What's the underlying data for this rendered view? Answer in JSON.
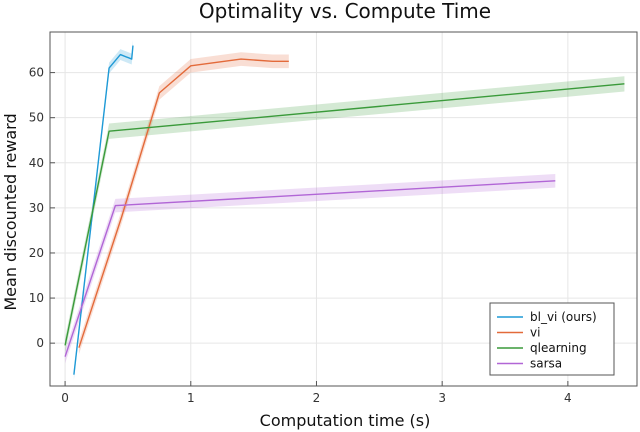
{
  "chart_data": {
    "type": "line",
    "title": "Optimality vs. Compute Time",
    "xlabel": "Computation time (s)",
    "ylabel": "Mean discounted reward",
    "xlim": [
      -0.12,
      4.55
    ],
    "ylim": [
      -9.5,
      69
    ],
    "xticks": [
      0,
      1,
      2,
      3,
      4
    ],
    "yticks": [
      0,
      10,
      20,
      30,
      40,
      50,
      60
    ],
    "grid": true,
    "legend_position": "bottom-right",
    "series": [
      {
        "name": "bl_vi (ours)",
        "color": "#1f9ad6",
        "points": [
          [
            0.07,
            -7
          ],
          [
            0.35,
            61
          ],
          [
            0.44,
            64
          ],
          [
            0.53,
            63
          ],
          [
            0.54,
            66
          ]
        ],
        "band": 1.2
      },
      {
        "name": "vi",
        "color": "#e36a3a",
        "points": [
          [
            0.11,
            -1
          ],
          [
            0.45,
            28
          ],
          [
            0.75,
            55.5
          ],
          [
            1.0,
            61.5
          ],
          [
            1.4,
            63
          ],
          [
            1.65,
            62.5
          ],
          [
            1.78,
            62.5
          ]
        ],
        "band": 1.5
      },
      {
        "name": "qlearning",
        "color": "#3a9a3a",
        "points": [
          [
            0.0,
            -0.5
          ],
          [
            0.35,
            47
          ],
          [
            4.45,
            57.5
          ]
        ],
        "band": 1.7
      },
      {
        "name": "sarsa",
        "color": "#b166d6",
        "points": [
          [
            0.0,
            -3
          ],
          [
            0.4,
            30.5
          ],
          [
            3.9,
            36
          ]
        ],
        "band": 1.5
      }
    ]
  }
}
